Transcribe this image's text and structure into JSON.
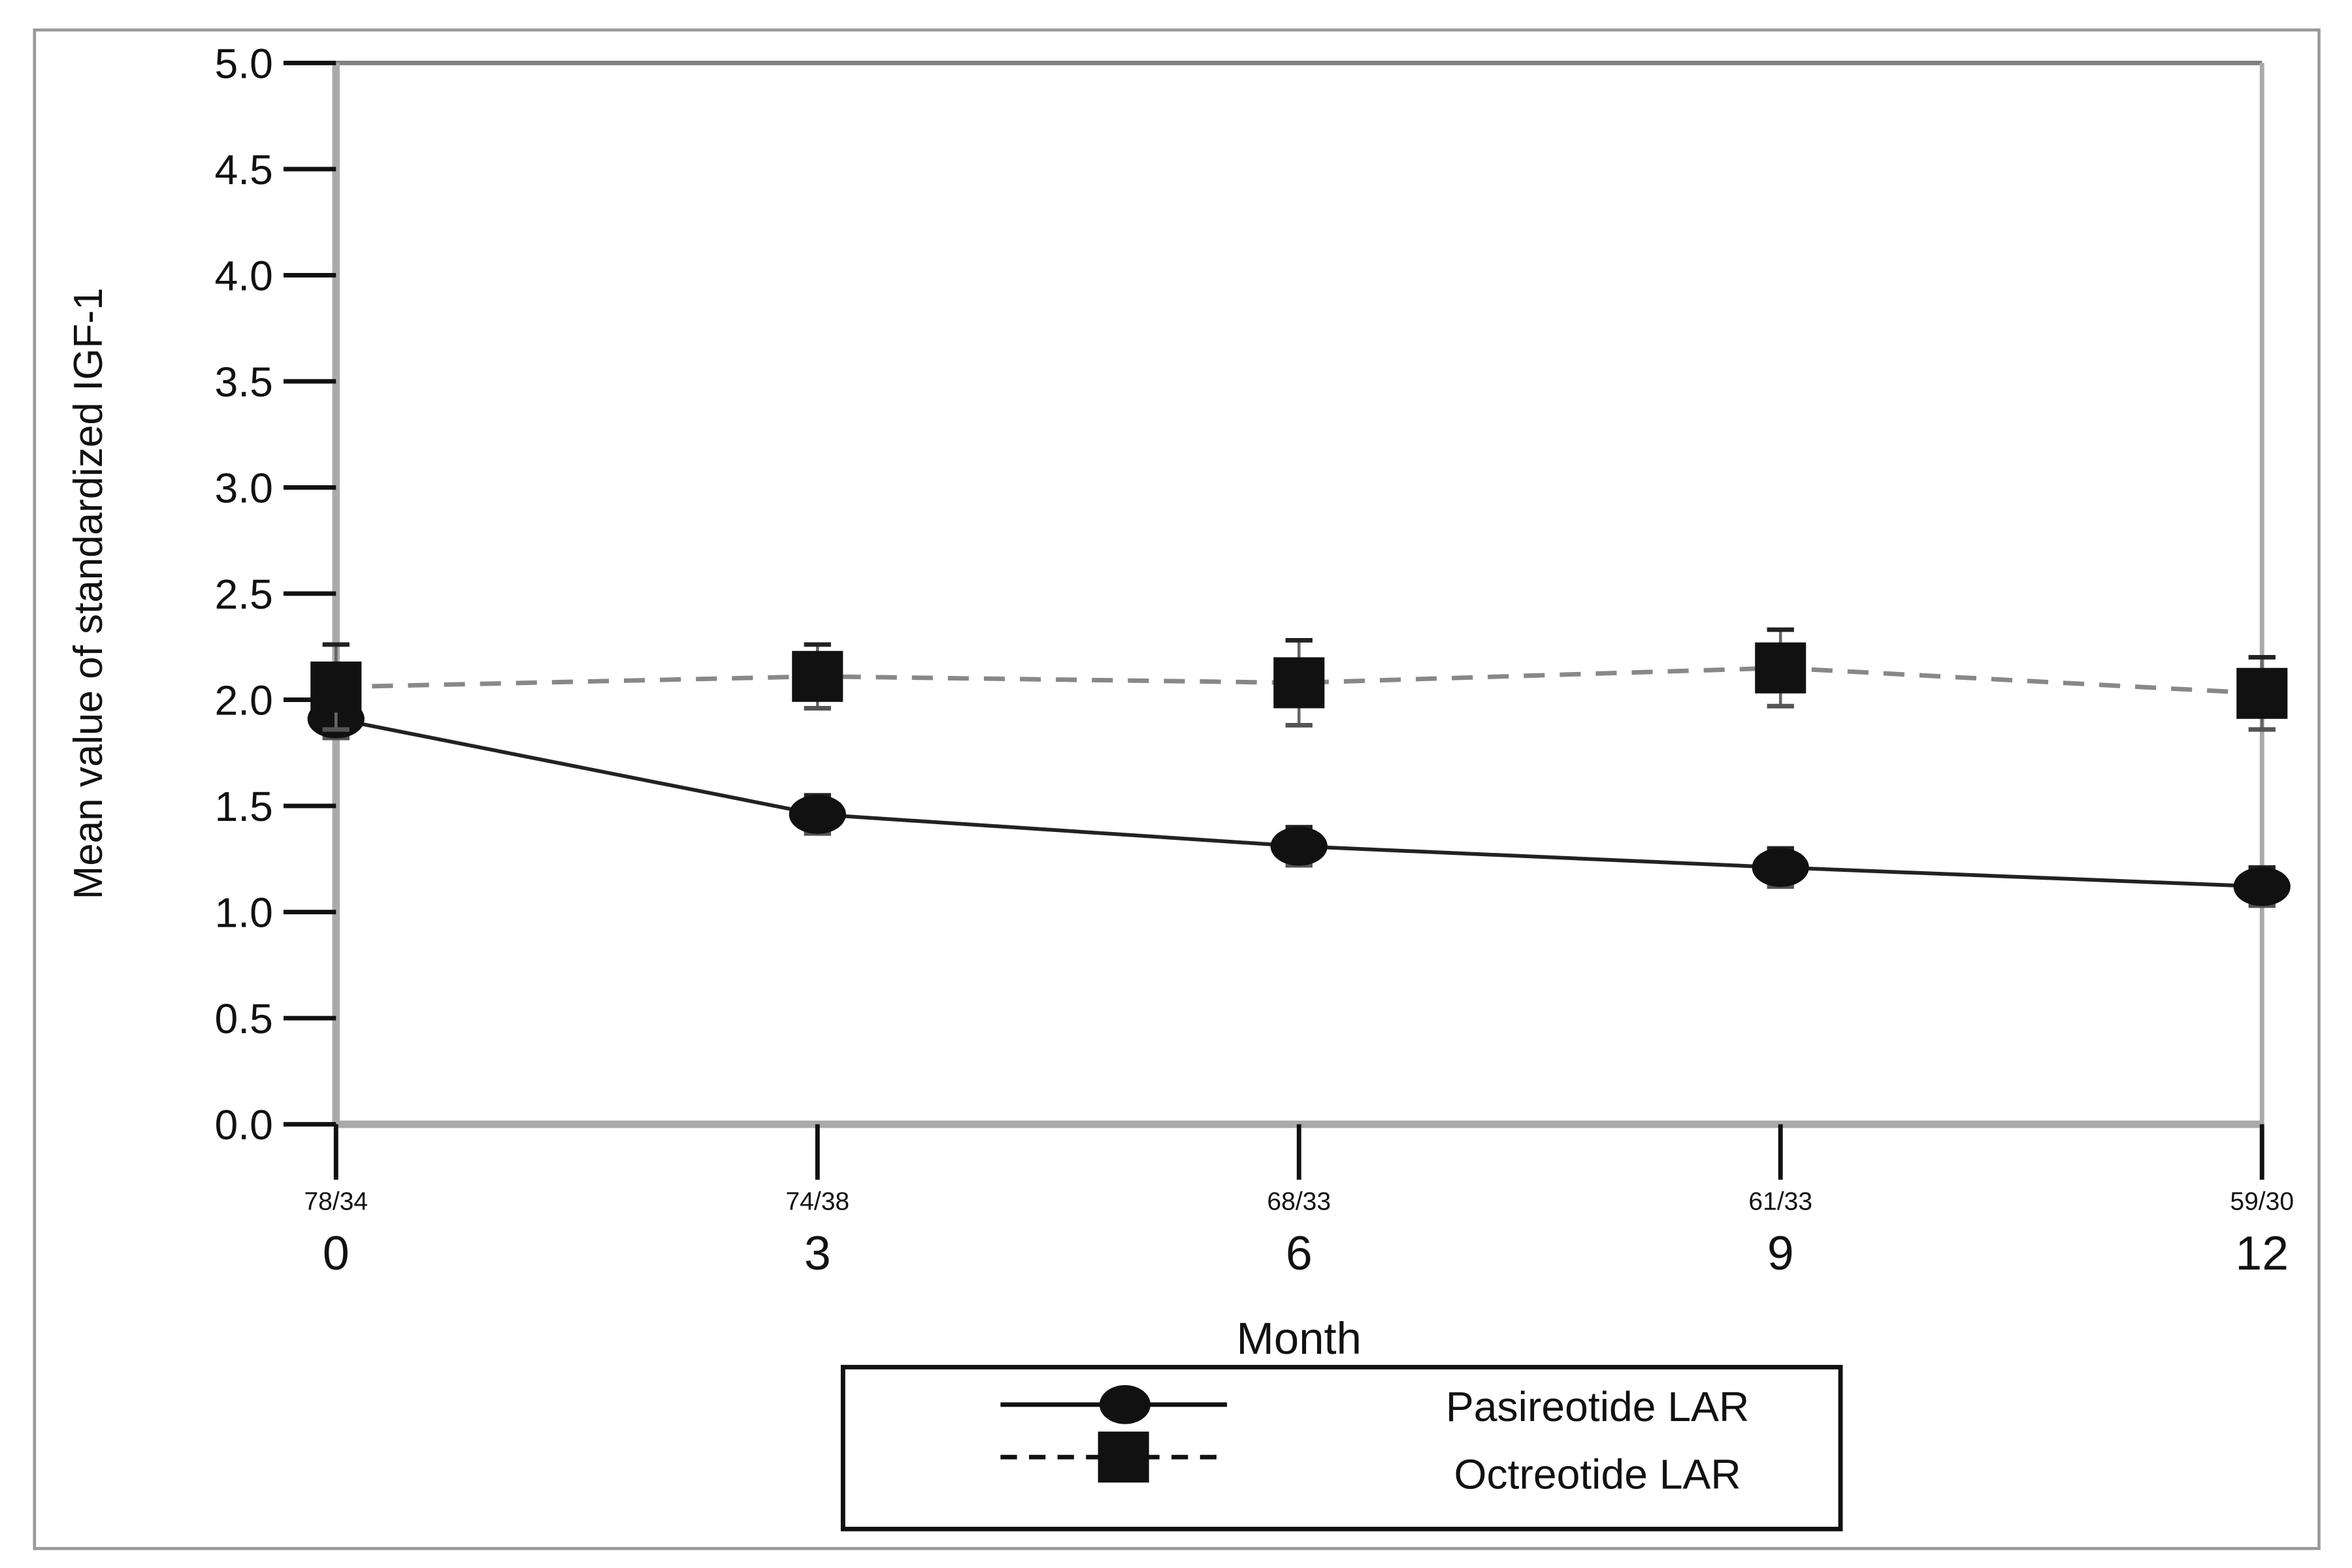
{
  "chart_data": {
    "type": "line",
    "title": "",
    "xlabel": "Month",
    "ylabel": "Mean value of standardized IGF-1",
    "x": [
      0,
      3,
      6,
      9,
      12
    ],
    "x_tick_labels": [
      "0",
      "3",
      "6",
      "9",
      "12"
    ],
    "n_labels": [
      "78/34",
      "74/38",
      "68/33",
      "61/33",
      "59/30"
    ],
    "ylim": [
      0.0,
      5.0
    ],
    "y_ticks": [
      "0.0",
      "0.5",
      "1.0",
      "1.5",
      "2.0",
      "2.5",
      "3.0",
      "3.5",
      "4.0",
      "4.5",
      "5.0"
    ],
    "grid": false,
    "legend_position": "bottom-center",
    "series": [
      {
        "name": "Pasireotide LAR",
        "marker": "circle",
        "line": "solid",
        "values": [
          1.91,
          1.46,
          1.31,
          1.21,
          1.12
        ],
        "error": [
          0.09,
          0.09,
          0.09,
          0.09,
          0.09
        ]
      },
      {
        "name": "Octreotide LAR",
        "marker": "square",
        "line": "dashed",
        "values": [
          2.06,
          2.11,
          2.08,
          2.15,
          2.03
        ],
        "error": [
          0.2,
          0.15,
          0.2,
          0.18,
          0.17
        ]
      }
    ]
  },
  "legend": {
    "items": [
      {
        "label": "Pasireotide LAR"
      },
      {
        "label": "Octreotide LAR"
      }
    ]
  }
}
